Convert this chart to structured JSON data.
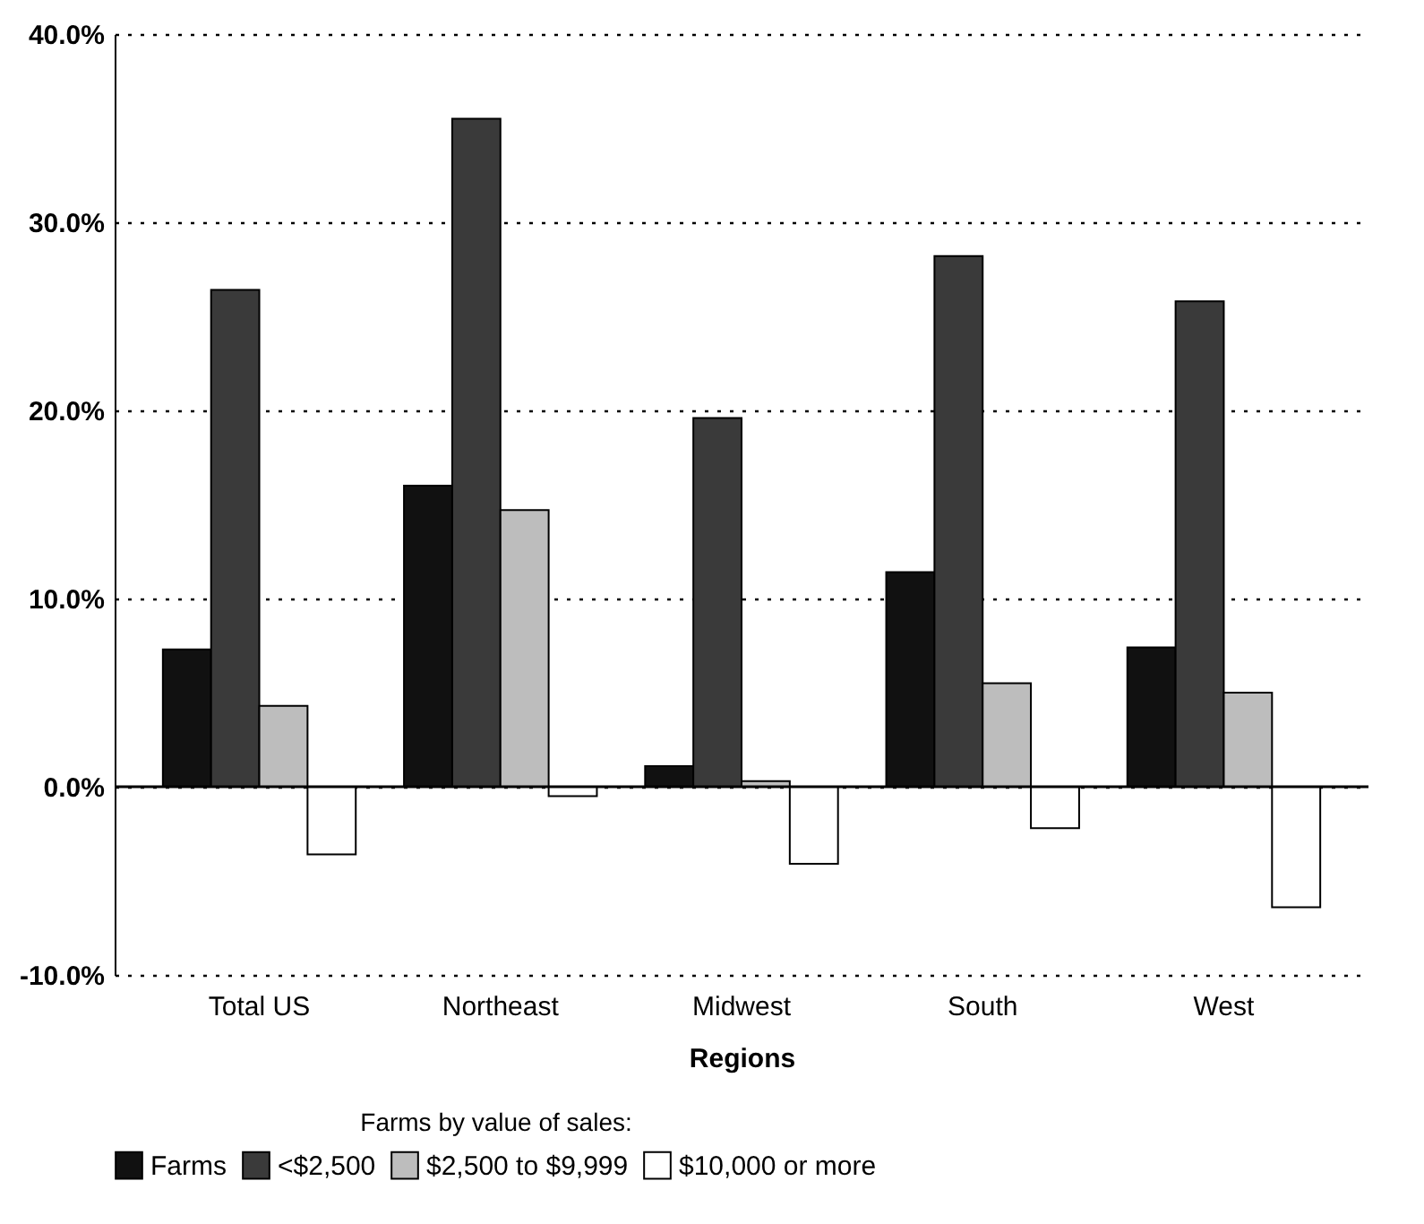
{
  "chart_data": {
    "type": "bar",
    "xlabel": "Regions",
    "legend_title": "Farms by value of sales:",
    "categories": [
      "Total US",
      "Northeast",
      "Midwest",
      "South",
      "West"
    ],
    "series": [
      {
        "name": "Farms",
        "color": "#111111",
        "values": [
          7.3,
          16.0,
          1.1,
          11.4,
          7.4
        ]
      },
      {
        "name": "<$2,500",
        "color": "#3a3a3a",
        "values": [
          26.4,
          35.5,
          19.6,
          28.2,
          25.8
        ]
      },
      {
        "name": "$2,500 to $9,999",
        "color": "#bdbdbd",
        "values": [
          4.3,
          14.7,
          0.3,
          5.5,
          5.0
        ]
      },
      {
        "name": "$10,000 or more",
        "color": "#ffffff",
        "values": [
          -3.6,
          -0.5,
          -4.1,
          -2.2,
          -6.4
        ]
      }
    ],
    "ylim": [
      -10,
      40
    ],
    "yticks": [
      {
        "value": -10,
        "label": "-10.0%"
      },
      {
        "value": 0,
        "label": "0.0%"
      },
      {
        "value": 10,
        "label": "10.0%"
      },
      {
        "value": 20,
        "label": "20.0%"
      },
      {
        "value": 30,
        "label": "30.0%"
      },
      {
        "value": 40,
        "label": "40.0%"
      }
    ],
    "grid": "y",
    "legend": "bottom",
    "ref_lines": [
      {
        "axis": "y",
        "value": 0,
        "color": "#000000"
      }
    ]
  }
}
